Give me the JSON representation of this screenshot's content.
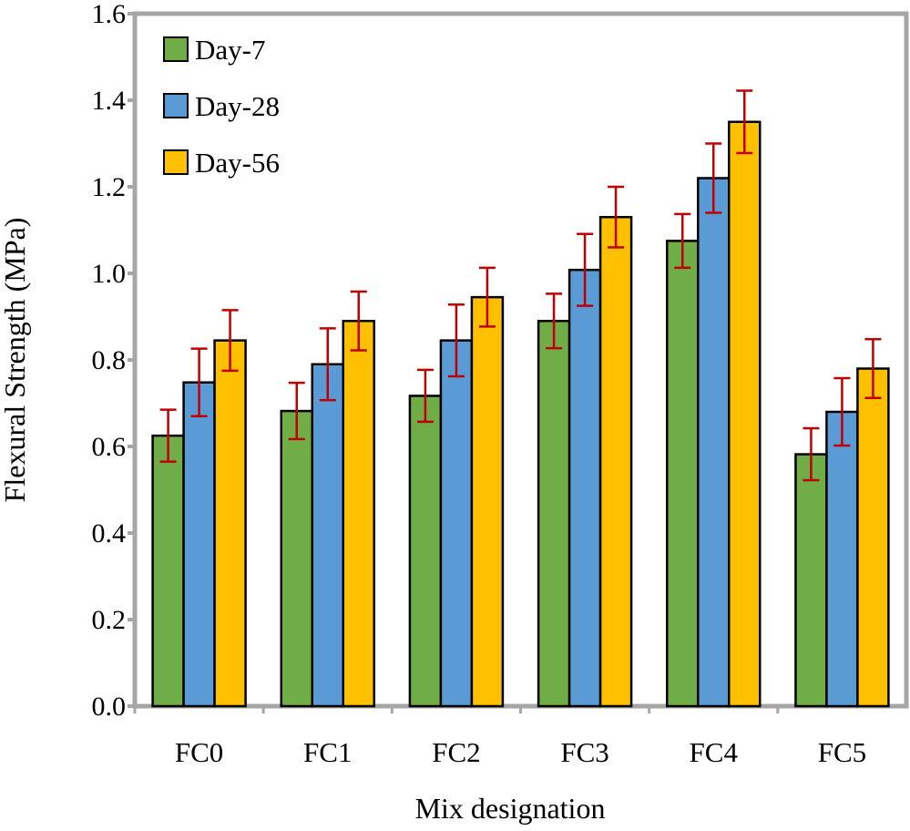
{
  "chart_data": {
    "type": "bar",
    "xlabel": "Mix designation",
    "ylabel": "Flexural Strength (MPa)",
    "ylim": [
      0,
      1.6
    ],
    "ytick_step": 0.2,
    "yticks": [
      "0.0",
      "0.2",
      "0.4",
      "0.6",
      "0.8",
      "1.0",
      "1.2",
      "1.4",
      "1.6"
    ],
    "categories": [
      "FC0",
      "FC1",
      "FC2",
      "FC3",
      "FC4",
      "FC5"
    ],
    "series": [
      {
        "name": "Day-7",
        "color": "#70ad47",
        "values": [
          0.625,
          0.682,
          0.717,
          0.89,
          1.075,
          0.582
        ],
        "errors": [
          0.06,
          0.065,
          0.06,
          0.063,
          0.062,
          0.06
        ]
      },
      {
        "name": "Day-28",
        "color": "#5b9bd5",
        "values": [
          0.748,
          0.79,
          0.845,
          1.008,
          1.22,
          0.68
        ],
        "errors": [
          0.078,
          0.083,
          0.083,
          0.083,
          0.08,
          0.078
        ]
      },
      {
        "name": "Day-56",
        "color": "#ffc000",
        "values": [
          0.845,
          0.89,
          0.945,
          1.13,
          1.35,
          0.78
        ],
        "errors": [
          0.07,
          0.068,
          0.068,
          0.07,
          0.072,
          0.068
        ]
      }
    ],
    "error_bar_color": "#c00000",
    "frame_color": "#a6a6a6",
    "grid": false,
    "legend_position": "top-left"
  }
}
